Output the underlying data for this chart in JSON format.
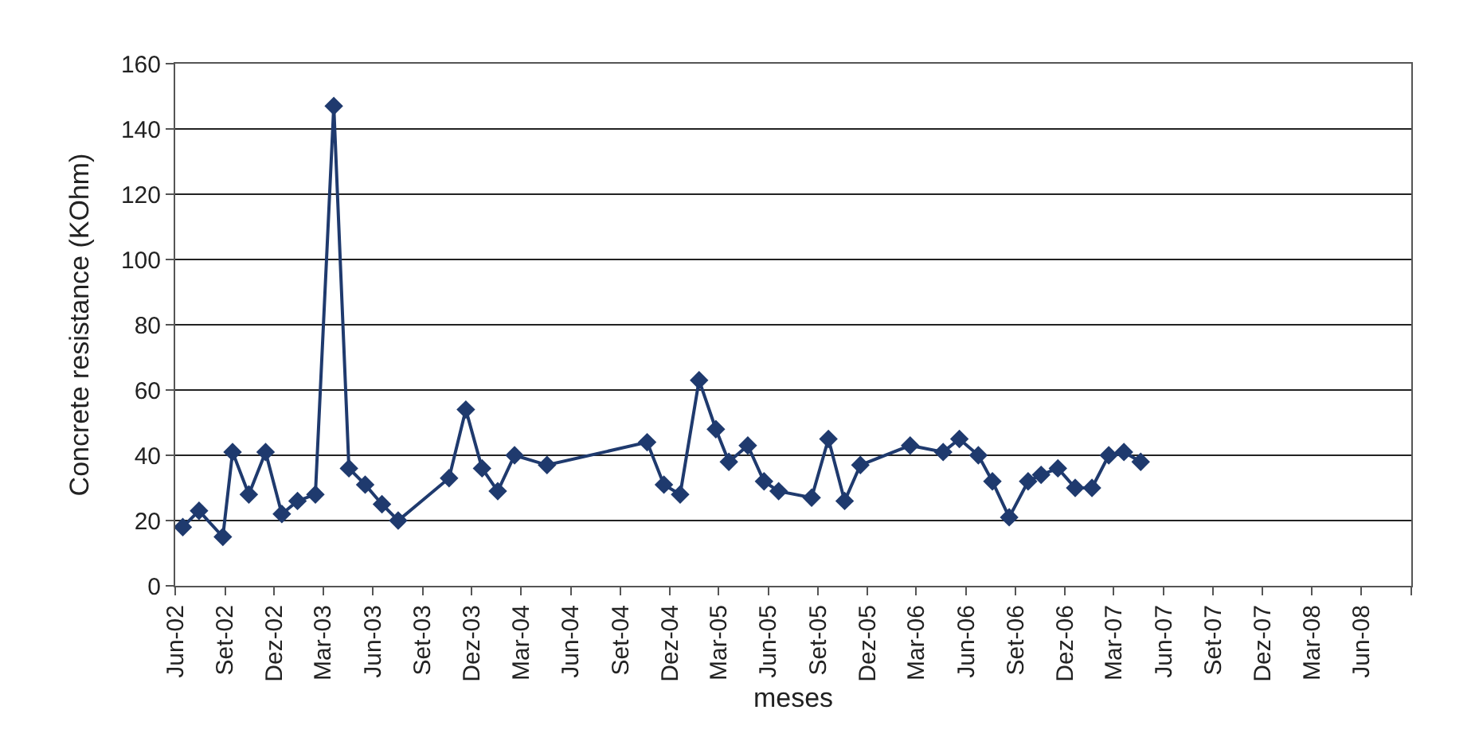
{
  "chart_data": {
    "type": "line",
    "xlabel": "meses",
    "ylabel": "Concrete resistance (KOhm)",
    "x": [
      "2002-06-15",
      "2002-07-15",
      "2002-08-28",
      "2002-09-15",
      "2002-10-15",
      "2002-11-15",
      "2002-12-15",
      "2003-01-13",
      "2003-02-15",
      "2003-03-21",
      "2003-04-18",
      "2003-05-18",
      "2003-06-18",
      "2003-07-18",
      "2003-10-20",
      "2003-11-20",
      "2003-12-20",
      "2004-01-18",
      "2004-02-18",
      "2004-04-18",
      "2004-10-20",
      "2004-11-20",
      "2004-12-20",
      "2005-01-24",
      "2005-02-24",
      "2005-03-20",
      "2005-04-24",
      "2005-05-24",
      "2005-06-20",
      "2005-08-20",
      "2005-09-20",
      "2005-10-20",
      "2005-11-18",
      "2006-02-18",
      "2006-04-20",
      "2006-05-20",
      "2006-06-24",
      "2006-07-20",
      "2006-08-20",
      "2006-09-24",
      "2006-10-18",
      "2006-11-18",
      "2006-12-20",
      "2007-01-20",
      "2007-02-20",
      "2007-03-20",
      "2007-04-20"
    ],
    "series": [
      {
        "color": "#1f3a6e",
        "values": [
          18,
          23,
          15,
          41,
          28,
          41,
          22,
          26,
          28,
          147,
          36,
          31,
          25,
          20,
          33,
          54,
          36,
          29,
          40,
          37,
          44,
          31,
          28,
          63,
          48,
          38,
          43,
          32,
          29,
          27,
          45,
          26,
          37,
          43,
          41,
          45,
          40,
          32,
          21,
          32,
          34,
          36,
          30,
          30,
          40,
          41,
          38
        ]
      }
    ],
    "marker": "diamond",
    "line_style": "solid",
    "grid": "y",
    "legend": false,
    "xlim": [
      "2002-06-01",
      "2008-09-01"
    ],
    "xticks": [
      {
        "value": "2002-06-01",
        "label": "Jun-02"
      },
      {
        "value": "2002-09-01",
        "label": "Set-02"
      },
      {
        "value": "2002-12-01",
        "label": "Dez-02"
      },
      {
        "value": "2003-03-01",
        "label": "Mar-03"
      },
      {
        "value": "2003-06-01",
        "label": "Jun-03"
      },
      {
        "value": "2003-09-01",
        "label": "Set-03"
      },
      {
        "value": "2003-12-01",
        "label": "Dez-03"
      },
      {
        "value": "2004-03-01",
        "label": "Mar-04"
      },
      {
        "value": "2004-06-01",
        "label": "Jun-04"
      },
      {
        "value": "2004-09-01",
        "label": "Set-04"
      },
      {
        "value": "2004-12-01",
        "label": "Dez-04"
      },
      {
        "value": "2005-03-01",
        "label": "Mar-05"
      },
      {
        "value": "2005-06-01",
        "label": "Jun-05"
      },
      {
        "value": "2005-09-01",
        "label": "Set-05"
      },
      {
        "value": "2005-12-01",
        "label": "Dez-05"
      },
      {
        "value": "2006-03-01",
        "label": "Mar-06"
      },
      {
        "value": "2006-06-01",
        "label": "Jun-06"
      },
      {
        "value": "2006-09-01",
        "label": "Set-06"
      },
      {
        "value": "2006-12-01",
        "label": "Dez-06"
      },
      {
        "value": "2007-03-01",
        "label": "Mar-07"
      },
      {
        "value": "2007-06-01",
        "label": "Jun-07"
      },
      {
        "value": "2007-09-01",
        "label": "Set-07"
      },
      {
        "value": "2007-12-01",
        "label": "Dez-07"
      },
      {
        "value": "2008-03-01",
        "label": "Mar-08"
      },
      {
        "value": "2008-06-01",
        "label": "Jun-08"
      },
      {
        "value": "2008-09-01",
        "label": null
      }
    ],
    "ylim": [
      0,
      160
    ],
    "yticks": [
      0,
      20,
      40,
      60,
      80,
      100,
      120,
      140,
      160
    ]
  }
}
